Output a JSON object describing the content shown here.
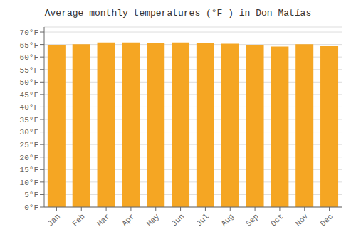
{
  "chart_data": {
    "type": "bar",
    "title": "Average monthly temperatures (°F ) in Don Matías",
    "categories": [
      "Jan",
      "Feb",
      "Mar",
      "Apr",
      "May",
      "Jun",
      "Jul",
      "Aug",
      "Sep",
      "Oct",
      "Nov",
      "Dec"
    ],
    "values": [
      64.9,
      65.1,
      65.8,
      65.8,
      65.7,
      65.8,
      65.5,
      65.3,
      64.9,
      64.2,
      65.1,
      64.4
    ],
    "color": "#F5A623",
    "ylim": [
      0,
      72
    ],
    "yticks": [
      {
        "value": 0,
        "label": "0°F"
      },
      {
        "value": 5,
        "label": "5°F"
      },
      {
        "value": 10,
        "label": "10°F"
      },
      {
        "value": 15,
        "label": "15°F"
      },
      {
        "value": 20,
        "label": "20°F"
      },
      {
        "value": 25,
        "label": "25°F"
      },
      {
        "value": 30,
        "label": "30°F"
      },
      {
        "value": 35,
        "label": "35°F"
      },
      {
        "value": 40,
        "label": "40°F"
      },
      {
        "value": 45,
        "label": "45°F"
      },
      {
        "value": 50,
        "label": "50°F"
      },
      {
        "value": 55,
        "label": "55°F"
      },
      {
        "value": 60,
        "label": "60°F"
      },
      {
        "value": 65,
        "label": "65°F"
      },
      {
        "value": 70,
        "label": "70°F"
      }
    ],
    "grid": true
  }
}
